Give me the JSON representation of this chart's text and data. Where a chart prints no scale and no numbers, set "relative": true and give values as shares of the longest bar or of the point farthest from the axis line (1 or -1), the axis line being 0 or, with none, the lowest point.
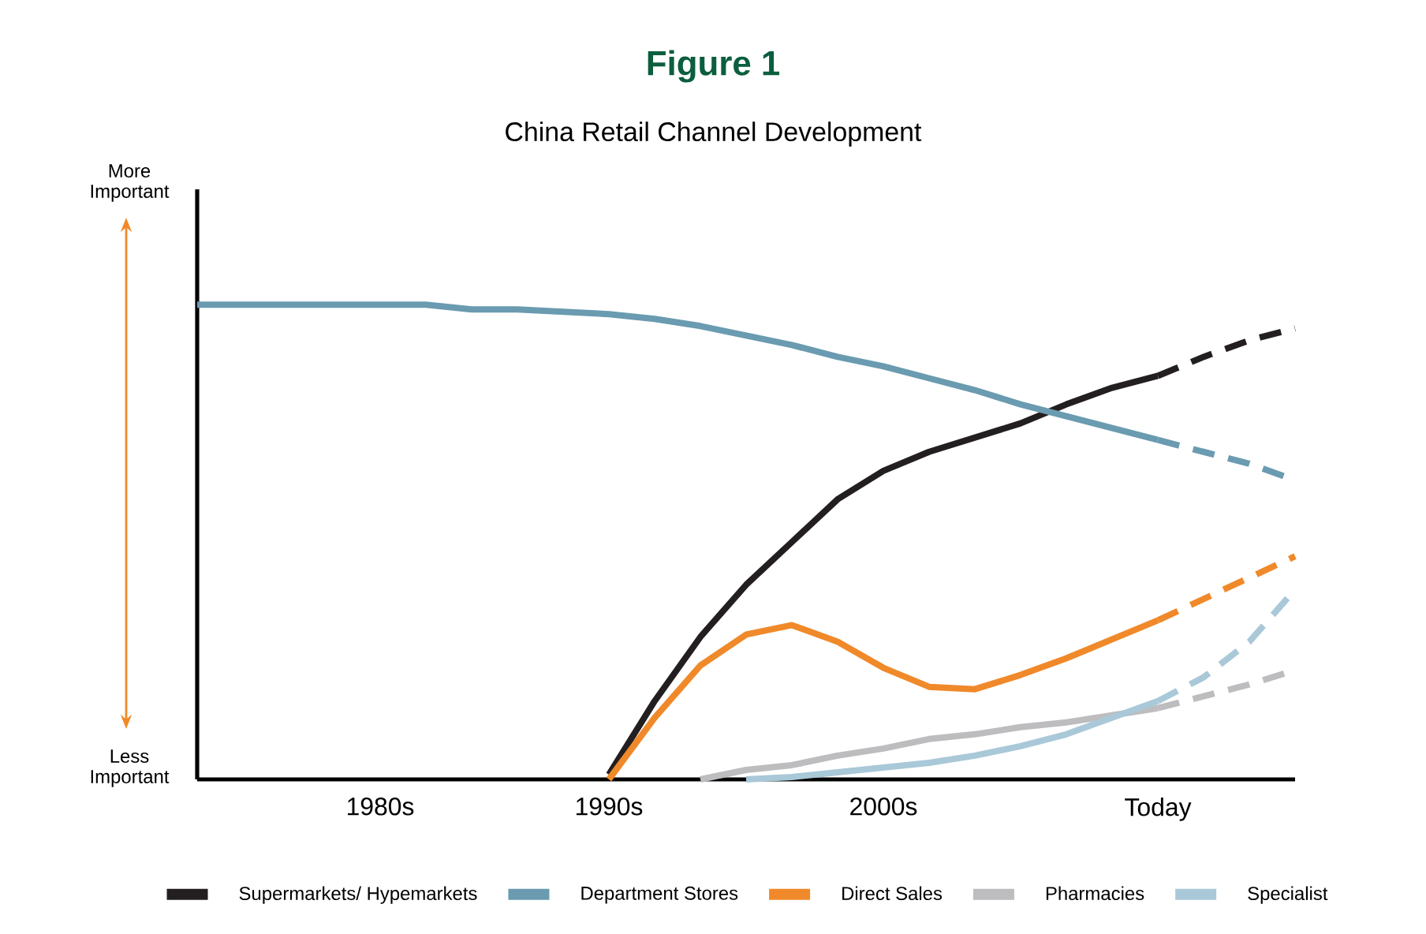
{
  "chart_data": {
    "type": "line",
    "title": "Figure 1",
    "subtitle": "China Retail Channel Development",
    "annotations": [
      "More Important",
      "Less Important"
    ],
    "relative": true,
    "legend": "bottom",
    "categories": [
      null,
      null,
      null,
      null,
      "1980s",
      null,
      null,
      null,
      null,
      "1990s",
      null,
      null,
      null,
      null,
      null,
      "2000s",
      null,
      null,
      null,
      null,
      null,
      "Today",
      null,
      null,
      null
    ],
    "series": [
      {
        "name": "Supermarkets/ Hypemarkets",
        "color": "#231f20",
        "values": [
          null,
          null,
          null,
          null,
          null,
          null,
          null,
          null,
          null,
          0.01,
          0.165,
          0.3,
          0.41,
          0.5,
          0.59,
          0.65,
          0.69,
          0.72,
          0.75,
          0.79,
          0.825,
          0.85,
          null,
          null,
          null
        ]
      },
      {
        "color": "#231f20",
        "line_style": "dashed",
        "values": [
          null,
          null,
          null,
          null,
          null,
          null,
          null,
          null,
          null,
          null,
          null,
          null,
          null,
          null,
          null,
          null,
          null,
          null,
          null,
          null,
          null,
          0.85,
          0.89,
          0.925,
          0.95
        ]
      },
      {
        "name": "Department Stores",
        "color": "#6a9bb0",
        "values": [
          1.0,
          1.0,
          1.0,
          1.0,
          1.0,
          1.0,
          0.99,
          0.99,
          0.985,
          0.98,
          0.97,
          0.955,
          0.935,
          0.915,
          0.89,
          0.87,
          0.845,
          0.82,
          0.79,
          0.765,
          0.74,
          0.715,
          null,
          null,
          null
        ]
      },
      {
        "color": "#6a9bb0",
        "line_style": "dashed",
        "values": [
          null,
          null,
          null,
          null,
          null,
          null,
          null,
          null,
          null,
          null,
          null,
          null,
          null,
          null,
          null,
          null,
          null,
          null,
          null,
          null,
          null,
          0.715,
          0.69,
          0.665,
          0.63
        ]
      },
      {
        "name": "Direct Sales",
        "color": "#f0892a",
        "values": [
          null,
          null,
          null,
          null,
          null,
          null,
          null,
          null,
          null,
          0,
          0.13,
          0.24,
          0.305,
          0.325,
          0.29,
          0.235,
          0.195,
          0.19,
          0.22,
          0.255,
          0.295,
          0.335,
          null,
          null,
          null
        ]
      },
      {
        "color": "#f0892a",
        "line_style": "dashed",
        "values": [
          null,
          null,
          null,
          null,
          null,
          null,
          null,
          null,
          null,
          null,
          null,
          null,
          null,
          null,
          null,
          null,
          null,
          null,
          null,
          null,
          null,
          0.335,
          0.38,
          0.425,
          0.47
        ]
      },
      {
        "name": "Pharmacies",
        "color": "#bdbdbf",
        "values": [
          null,
          null,
          null,
          null,
          null,
          null,
          null,
          null,
          null,
          null,
          null,
          0,
          0.02,
          0.03,
          0.05,
          0.065,
          0.085,
          0.095,
          0.11,
          0.12,
          0.135,
          0.15,
          null,
          null,
          null
        ]
      },
      {
        "color": "#bdbdbf",
        "line_style": "dashed",
        "values": [
          null,
          null,
          null,
          null,
          null,
          null,
          null,
          null,
          null,
          null,
          null,
          null,
          null,
          null,
          null,
          null,
          null,
          null,
          null,
          null,
          null,
          0.15,
          0.175,
          0.2,
          0.23
        ]
      },
      {
        "name": "Specialist",
        "color": "#a9c8d8",
        "values": [
          null,
          null,
          null,
          null,
          null,
          null,
          null,
          null,
          null,
          null,
          null,
          null,
          0,
          0.005,
          0.015,
          0.025,
          0.035,
          0.05,
          0.07,
          0.095,
          0.13,
          0.165,
          null,
          null,
          null
        ]
      },
      {
        "color": "#a9c8d8",
        "line_style": "dashed",
        "values": [
          null,
          null,
          null,
          null,
          null,
          null,
          null,
          null,
          null,
          null,
          null,
          null,
          null,
          null,
          null,
          null,
          null,
          null,
          null,
          null,
          null,
          0.165,
          0.215,
          0.29,
          0.4
        ]
      }
    ]
  }
}
